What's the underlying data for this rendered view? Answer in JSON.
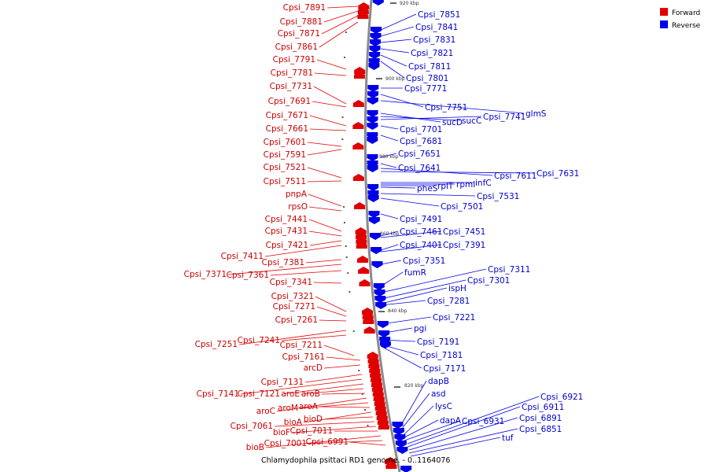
{
  "legend": [
    {
      "label": "Forward",
      "color": "#e00000"
    },
    {
      "label": "Reverse",
      "color": "#0000e8"
    }
  ],
  "caption": "Chlamydophila psittaci RD1 genome. - 0..1164076",
  "ticks": [
    "920 kbp",
    "900 kbp",
    "880 kbp",
    "860 kbp",
    "840 kbp",
    "820 kbp"
  ],
  "forward_genes": [
    "Cpsi_7891",
    "Cpsi_7881",
    "Cpsi_7871",
    "Cpsi_7861",
    "Cpsi_7791",
    "Cpsi_7781",
    "Cpsi_7731",
    "Cpsi_7691",
    "Cpsi_7671",
    "Cpsi_7661",
    "Cpsi_7601",
    "Cpsi_7591",
    "Cpsi_7521",
    "Cpsi_7511",
    "pnpA",
    "rpsO",
    "Cpsi_7441",
    "Cpsi_7431",
    "Cpsi_7421",
    "Cpsi_7411",
    "Cpsi_7381",
    "Cpsi_7371",
    "Cpsi_7361",
    "Cpsi_7341",
    "Cpsi_7321",
    "Cpsi_7271",
    "Cpsi_7261",
    "Cpsi_7251",
    "Cpsi_7241",
    "Cpsi_7211",
    "Cpsi_7161",
    "arcD",
    "Cpsi_7131",
    "Cpsi_7141",
    "Cpsi_7121",
    "aroE",
    "aroB",
    "aroC",
    "aroM",
    "aroA",
    "bioA",
    "bioD",
    "Cpsi_7061",
    "bioF",
    "Cpsi_7011",
    "bioB",
    "Cpsi_7001",
    "Cpsi_6991"
  ],
  "reverse_genes": [
    "Cpsi_7851",
    "Cpsi_7841",
    "Cpsi_7831",
    "Cpsi_7821",
    "Cpsi_7811",
    "Cpsi_7801",
    "Cpsi_7771",
    "Cpsi_7751",
    "sucD",
    "sucC",
    "Cpsi_7741",
    "glmS",
    "Cpsi_7701",
    "Cpsi_7681",
    "Cpsi_7651",
    "Cpsi_7641",
    "Cpsi_7611",
    "Cpsi_7631",
    "pheS",
    "rplT",
    "rpmI",
    "infC",
    "Cpsi_7531",
    "Cpsi_7501",
    "Cpsi_7491",
    "Cpsi_7461",
    "Cpsi_7451",
    "Cpsi_7401",
    "Cpsi_7391",
    "Cpsi_7351",
    "fumR",
    "Cpsi_7311",
    "Cpsi_7301",
    "ispH",
    "Cpsi_7281",
    "Cpsi_7221",
    "pgi",
    "Cpsi_7191",
    "Cpsi_7181",
    "Cpsi_7171",
    "dapB",
    "asd",
    "lysC",
    "dapA",
    "Cpsi_6931",
    "Cpsi_6921",
    "Cpsi_6911",
    "Cpsi_6891",
    "Cpsi_6851",
    "tuf"
  ]
}
